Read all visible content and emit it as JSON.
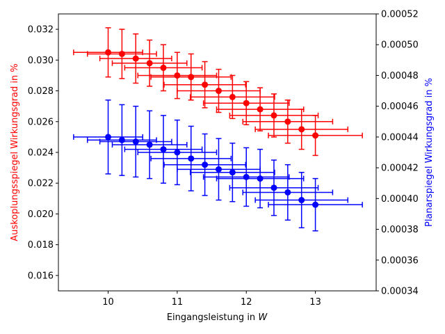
{
  "chart_data": {
    "type": "scatter",
    "title": "",
    "xlabel_prefix": "Eingangsleistung in ",
    "xlabel_unit": "W",
    "xlim": [
      9.28,
      13.88
    ],
    "xticks": [
      10,
      11,
      12,
      13
    ],
    "y_left": {
      "label": "Auskoplungsspiegel Wirkungsgrad in %",
      "color": "#ff0000",
      "ylim": [
        0.015,
        0.033
      ],
      "ticks": [
        "0.016",
        "0.018",
        "0.020",
        "0.022",
        "0.024",
        "0.026",
        "0.028",
        "0.030",
        "0.032"
      ]
    },
    "y_right": {
      "label": "Planarspiegel Wirkungsgrad in %",
      "color": "#0000ff",
      "ylim": [
        0.00034,
        0.00052
      ],
      "ticks": [
        "0.00034",
        "0.00036",
        "0.00038",
        "0.00040",
        "0.00042",
        "0.00044",
        "0.00046",
        "0.00048",
        "0.00050",
        "0.00052"
      ]
    },
    "series": [
      {
        "axis": "left",
        "color": "#ff0000",
        "x": [
          10.0,
          10.2,
          10.4,
          10.6,
          10.8,
          11.0,
          11.2,
          11.4,
          11.6,
          11.8,
          12.0,
          12.2,
          12.4,
          12.6,
          12.8,
          13.0
        ],
        "y": [
          0.0305,
          0.0304,
          0.0301,
          0.0298,
          0.0295,
          0.029,
          0.0289,
          0.0284,
          0.028,
          0.0276,
          0.0272,
          0.0268,
          0.0264,
          0.026,
          0.0255,
          0.0251
        ],
        "xerr": [
          0.5,
          0.5,
          0.52,
          0.54,
          0.56,
          0.57,
          0.58,
          0.59,
          0.6,
          0.61,
          0.62,
          0.63,
          0.64,
          0.65,
          0.67,
          0.68
        ],
        "yerr": [
          0.0016,
          0.0016,
          0.0016,
          0.0015,
          0.0015,
          0.0015,
          0.0015,
          0.0015,
          0.0014,
          0.0014,
          0.0014,
          0.0014,
          0.0014,
          0.0014,
          0.0013,
          0.0013
        ]
      },
      {
        "axis": "right",
        "color": "#0000ff",
        "x": [
          10.0,
          10.2,
          10.4,
          10.6,
          10.8,
          11.0,
          11.2,
          11.4,
          11.6,
          11.8,
          12.0,
          12.2,
          12.4,
          12.6,
          12.8,
          13.0
        ],
        "y": [
          0.00044,
          0.000438,
          0.000437,
          0.000435,
          0.000432,
          0.00043,
          0.000426,
          0.000422,
          0.000419,
          0.000417,
          0.000414,
          0.000413,
          0.000407,
          0.000404,
          0.000399,
          0.000396
        ],
        "xerr": [
          0.5,
          0.5,
          0.52,
          0.54,
          0.56,
          0.57,
          0.58,
          0.59,
          0.6,
          0.61,
          0.62,
          0.63,
          0.64,
          0.65,
          0.67,
          0.68
        ],
        "yerr": [
          2.4e-05,
          2.3e-05,
          2.3e-05,
          2.2e-05,
          2.2e-05,
          2.1e-05,
          2.1e-05,
          2e-05,
          2e-05,
          1.9e-05,
          1.9e-05,
          1.9e-05,
          1.8e-05,
          1.8e-05,
          1.8e-05,
          1.7e-05
        ]
      }
    ],
    "grid": false,
    "legend": "none"
  }
}
